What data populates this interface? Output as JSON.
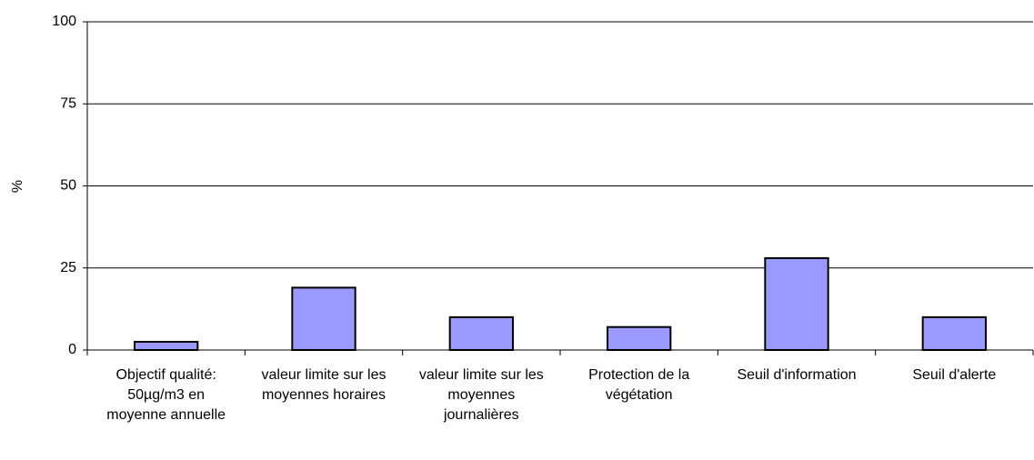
{
  "chart_data": {
    "type": "bar",
    "y_label": "%",
    "categories": [
      "Objectif qualité: 50µg/m3 en moyenne annuelle",
      "valeur limite sur les moyennes horaires",
      "valeur limite sur les moyennes journalières",
      "Protection de la végétation",
      "Seuil d'information",
      "Seuil d'alerte"
    ],
    "values": [
      2.5,
      19,
      10,
      7,
      28,
      10
    ],
    "color": "#9999ff",
    "ylim": [
      0,
      100
    ],
    "yticks": [
      0,
      25,
      50,
      75,
      100
    ],
    "grid": true
  }
}
